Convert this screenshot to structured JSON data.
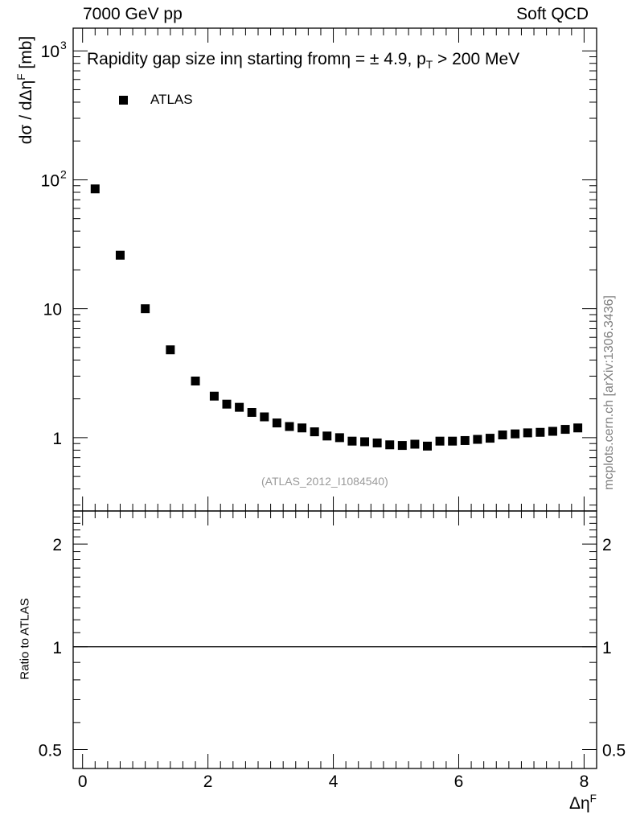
{
  "header": {
    "left": "7000 GeV pp",
    "right": "Soft QCD"
  },
  "plot_title": "Rapidity gap size inη starting fromη = ± 4.9, p",
  "plot_title_sub": "T",
  "plot_title_tail": " > 200 MeV",
  "analysis_id": "(ATLAS_2012_I1084540)",
  "watermark": "mcplots.cern.ch [arXiv:1306.3436]",
  "ylabel_top": "dσ / dΔη",
  "ylabel_top_sup": "F",
  "ylabel_top_tail": " [mb]",
  "ylabel_bottom": "Ratio to ATLAS",
  "xlabel": "Δη",
  "xlabel_sup": "F",
  "colors": {
    "marker": "#000000",
    "axis": "#000000",
    "reference_line": "#000000",
    "analysis_id": "#9a9a9a",
    "watermark": "#808080"
  },
  "chart_data": [
    {
      "type": "scatter",
      "panel": "main",
      "title": "Rapidity gap size inη starting fromη = ± 4.9, p_T > 200 MeV",
      "xlabel": "Δη^F",
      "ylabel": "dσ / dΔη^F [mb]",
      "y_scale": "log",
      "xlim": [
        -0.15,
        8.2
      ],
      "ylim": [
        0.27,
        1500
      ],
      "y_ticks": [
        {
          "value": 1000,
          "label": "10",
          "sup": "3"
        },
        {
          "value": 100,
          "label": "10",
          "sup": "2"
        },
        {
          "value": 10,
          "label": "10",
          "sup": ""
        },
        {
          "value": 1,
          "label": "1",
          "sup": ""
        }
      ],
      "x_ticks": [
        0,
        2,
        4,
        6,
        8
      ],
      "legend": {
        "position": "top-left",
        "entries": [
          "ATLAS"
        ]
      },
      "series": [
        {
          "name": "ATLAS",
          "marker": "square",
          "x": [
            0.2,
            0.6,
            1.0,
            1.4,
            1.8,
            2.1,
            2.3,
            2.5,
            2.7,
            2.9,
            3.1,
            3.3,
            3.5,
            3.7,
            3.9,
            4.1,
            4.3,
            4.5,
            4.7,
            4.9,
            5.1,
            5.3,
            5.5,
            5.7,
            5.9,
            6.1,
            6.3,
            6.5,
            6.7,
            6.9,
            7.1,
            7.3,
            7.5,
            7.7,
            7.9
          ],
          "y": [
            85,
            26,
            10,
            4.8,
            2.75,
            2.1,
            1.82,
            1.72,
            1.57,
            1.45,
            1.3,
            1.22,
            1.19,
            1.11,
            1.03,
            1.0,
            0.94,
            0.93,
            0.91,
            0.88,
            0.87,
            0.89,
            0.86,
            0.94,
            0.94,
            0.95,
            0.97,
            0.99,
            1.05,
            1.07,
            1.09,
            1.1,
            1.12,
            1.16,
            1.19
          ]
        }
      ]
    },
    {
      "type": "line",
      "panel": "ratio",
      "ylabel": "Ratio to ATLAS",
      "y_scale": "log",
      "xlim": [
        -0.15,
        8.2
      ],
      "ylim": [
        0.44,
        2.5
      ],
      "y_ticks": [
        {
          "value": 2,
          "label": "2"
        },
        {
          "value": 1,
          "label": "1"
        },
        {
          "value": 0.5,
          "label": "0.5"
        }
      ],
      "x_ticks": [
        0,
        2,
        4,
        6,
        8
      ],
      "reference_value": 1
    }
  ]
}
